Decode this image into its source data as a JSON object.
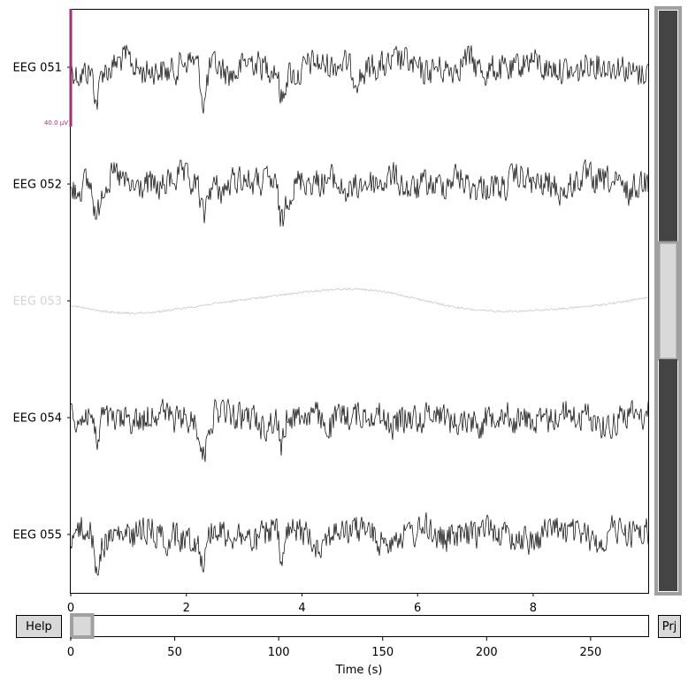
{
  "buttons": {
    "help": "Help",
    "projector": "Prj"
  },
  "colors": {
    "trace": "#000000",
    "bad_trace": "#d3d3d3",
    "scalebar": "#a23079",
    "scrollbar_fill": "#444444",
    "scrollbar_window": "#d9d9d9",
    "scroll_frame": "#a0a0a0"
  },
  "chart_data": [
    {
      "type": "line",
      "title": "",
      "xlabel": "",
      "ylabel": "",
      "xlim": [
        0,
        9.99
      ],
      "xticks": [
        0,
        2,
        4,
        6,
        8
      ],
      "x_tick_labels": [
        "0",
        "2",
        "4",
        "6",
        "8"
      ],
      "channels": [
        {
          "name": "EEG 051",
          "bad": false
        },
        {
          "name": "EEG 052",
          "bad": false
        },
        {
          "name": "EEG 053",
          "bad": true
        },
        {
          "name": "EEG 054",
          "bad": false
        },
        {
          "name": "EEG 055",
          "bad": false
        }
      ],
      "scalebar": {
        "label": "40.0 µV",
        "value": 40.0,
        "unit": "µV"
      },
      "grid": false
    },
    {
      "type": "scrollbar",
      "title": "",
      "xlabel": "Time (s)",
      "xlim": [
        0,
        277.7
      ],
      "xticks": [
        0,
        50,
        100,
        150,
        200,
        250
      ],
      "x_tick_labels": [
        "0",
        "50",
        "100",
        "150",
        "200",
        "250"
      ],
      "window": [
        0,
        10
      ]
    },
    {
      "type": "scrollbar",
      "orientation": "vertical",
      "total_channels": 5,
      "visible_channels": 5,
      "highlighted_channel_index": 2
    }
  ]
}
